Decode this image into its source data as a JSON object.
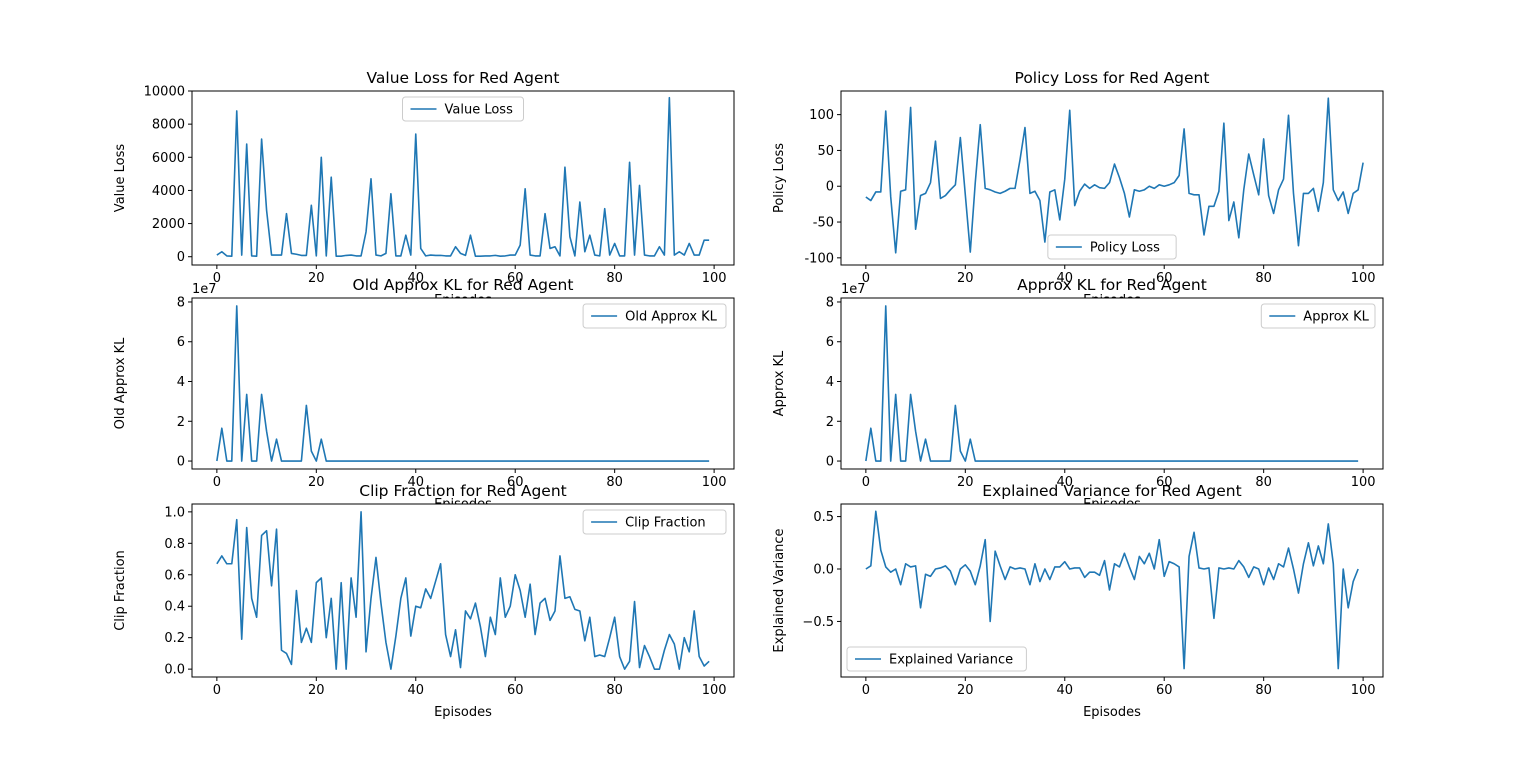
{
  "figure": {
    "background": "#ffffff",
    "line_color": "#1f77b4"
  },
  "chart_data": [
    {
      "type": "line",
      "title": "Value Loss for Red Agent",
      "xlabel": "Episodes",
      "ylabel": "Value Loss",
      "legend": "upper center",
      "xlim": [
        -5,
        104
      ],
      "ylim": [
        -500,
        10000
      ],
      "xticks": [
        0,
        20,
        40,
        60,
        80,
        100
      ],
      "yticks": [
        0,
        2000,
        4000,
        6000,
        8000,
        10000
      ],
      "exponent": "",
      "series": [
        {
          "name": "Value Loss",
          "values": [
            100,
            300,
            50,
            30,
            8800,
            100,
            6800,
            50,
            30,
            7100,
            2800,
            100,
            100,
            100,
            2600,
            200,
            150,
            80,
            80,
            3100,
            50,
            6000,
            50,
            4800,
            30,
            30,
            80,
            100,
            50,
            50,
            1500,
            4700,
            100,
            50,
            200,
            3800,
            50,
            50,
            1300,
            100,
            7400,
            500,
            50,
            100,
            80,
            80,
            50,
            50,
            600,
            200,
            80,
            1300,
            30,
            30,
            50,
            50,
            80,
            30,
            50,
            100,
            100,
            700,
            4100,
            100,
            50,
            50,
            2600,
            500,
            600,
            50,
            5400,
            1200,
            50,
            3300,
            300,
            1300,
            100,
            50,
            2900,
            100,
            800,
            50,
            50,
            5700,
            100,
            4300,
            100,
            50,
            50,
            600,
            100,
            9600,
            100,
            300,
            100,
            800,
            100,
            100,
            1000,
            1000
          ]
        }
      ]
    },
    {
      "type": "line",
      "title": "Policy Loss for Red Agent",
      "xlabel": "Episodes",
      "ylabel": "Policy Loss",
      "legend": "lower center",
      "xlim": [
        -5,
        104
      ],
      "ylim": [
        -110,
        133
      ],
      "xticks": [
        0,
        20,
        40,
        60,
        80,
        100
      ],
      "yticks": [
        -100,
        -50,
        0,
        50,
        100
      ],
      "exponent": "",
      "series": [
        {
          "name": "Policy Loss",
          "values": [
            -15,
            -20,
            -8,
            -8,
            105,
            -15,
            -93,
            -7,
            -5,
            110,
            -60,
            -13,
            -10,
            5,
            63,
            -17,
            -13,
            -5,
            2,
            68,
            -12,
            -92,
            5,
            86,
            -3,
            -5,
            -8,
            -10,
            -7,
            -3,
            -3,
            37,
            82,
            -10,
            -7,
            -20,
            -78,
            -8,
            -5,
            -47,
            10,
            106,
            -27,
            -7,
            3,
            -3,
            2,
            -2,
            -3,
            5,
            31,
            12,
            -10,
            -43,
            -5,
            -7,
            -5,
            0,
            -3,
            2,
            0,
            2,
            5,
            15,
            80,
            -10,
            -12,
            -12,
            -68,
            -28,
            -28,
            -7,
            88,
            -48,
            -22,
            -72,
            -5,
            45,
            16,
            -12,
            66,
            -13,
            -38,
            -5,
            10,
            99,
            -10,
            -83,
            -10,
            -10,
            -3,
            -35,
            5,
            123,
            -5,
            -20,
            -8,
            -38,
            -10,
            -5,
            33
          ]
        }
      ]
    },
    {
      "type": "line",
      "title": "Old Approx KL for Red Agent",
      "xlabel": "Episodes",
      "ylabel": "Old Approx KL",
      "legend": "upper right",
      "xlim": [
        -5,
        104
      ],
      "ylim": [
        -0.4,
        8.2
      ],
      "xticks": [
        0,
        20,
        40,
        60,
        80,
        100
      ],
      "yticks": [
        0,
        2,
        4,
        6,
        8
      ],
      "exponent": "1e7",
      "series": [
        {
          "name": "Old Approx KL",
          "values": [
            0,
            1.65,
            0,
            0,
            7.8,
            0,
            3.35,
            0,
            0,
            3.35,
            1.5,
            0,
            1.1,
            0,
            0,
            0,
            0,
            0,
            2.8,
            0.5,
            0,
            1.1,
            0,
            0,
            0,
            0,
            0,
            0,
            0,
            0,
            0,
            0,
            0,
            0,
            0,
            0,
            0,
            0,
            0,
            0,
            0,
            0,
            0,
            0,
            0,
            0,
            0,
            0,
            0,
            0,
            0,
            0,
            0,
            0,
            0,
            0,
            0,
            0,
            0,
            0,
            0,
            0,
            0,
            0,
            0,
            0,
            0,
            0,
            0,
            0,
            0,
            0,
            0,
            0,
            0,
            0,
            0,
            0,
            0,
            0,
            0,
            0,
            0,
            0,
            0,
            0,
            0,
            0,
            0,
            0,
            0,
            0,
            0,
            0,
            0,
            0,
            0,
            0,
            0,
            0
          ]
        }
      ]
    },
    {
      "type": "line",
      "title": "Approx KL for Red Agent",
      "xlabel": "Episodes",
      "ylabel": "Approx KL",
      "legend": "upper right",
      "xlim": [
        -5,
        104
      ],
      "ylim": [
        -0.4,
        8.2
      ],
      "xticks": [
        0,
        20,
        40,
        60,
        80,
        100
      ],
      "yticks": [
        0,
        2,
        4,
        6,
        8
      ],
      "exponent": "1e7",
      "series": [
        {
          "name": "Approx KL",
          "values": [
            0,
            1.65,
            0,
            0,
            7.8,
            0,
            3.35,
            0,
            0,
            3.35,
            1.5,
            0,
            1.1,
            0,
            0,
            0,
            0,
            0,
            2.8,
            0.5,
            0,
            1.1,
            0,
            0,
            0,
            0,
            0,
            0,
            0,
            0,
            0,
            0,
            0,
            0,
            0,
            0,
            0,
            0,
            0,
            0,
            0,
            0,
            0,
            0,
            0,
            0,
            0,
            0,
            0,
            0,
            0,
            0,
            0,
            0,
            0,
            0,
            0,
            0,
            0,
            0,
            0,
            0,
            0,
            0,
            0,
            0,
            0,
            0,
            0,
            0,
            0,
            0,
            0,
            0,
            0,
            0,
            0,
            0,
            0,
            0,
            0,
            0,
            0,
            0,
            0,
            0,
            0,
            0,
            0,
            0,
            0,
            0,
            0,
            0,
            0,
            0,
            0,
            0,
            0,
            0
          ]
        }
      ]
    },
    {
      "type": "line",
      "title": "Clip Fraction for Red Agent",
      "xlabel": "Episodes",
      "ylabel": "Clip Fraction",
      "legend": "upper right",
      "xlim": [
        -5,
        104
      ],
      "ylim": [
        -0.05,
        1.05
      ],
      "xticks": [
        0,
        20,
        40,
        60,
        80,
        100
      ],
      "yticks": [
        0.0,
        0.2,
        0.4,
        0.6,
        0.8,
        1.0
      ],
      "ytick_labels": [
        "0.0",
        "0.2",
        "0.4",
        "0.6",
        "0.8",
        "1.0"
      ],
      "exponent": "",
      "series": [
        {
          "name": "Clip Fraction",
          "values": [
            0.67,
            0.72,
            0.67,
            0.67,
            0.95,
            0.19,
            0.9,
            0.45,
            0.33,
            0.85,
            0.88,
            0.53,
            0.89,
            0.12,
            0.1,
            0.03,
            0.5,
            0.17,
            0.26,
            0.17,
            0.55,
            0.58,
            0.2,
            0.45,
            0,
            0.55,
            0,
            0.58,
            0.33,
            1.0,
            0.11,
            0.45,
            0.71,
            0.42,
            0.17,
            0,
            0.21,
            0.45,
            0.58,
            0.21,
            0.4,
            0.39,
            0.51,
            0.45,
            0.56,
            0.67,
            0.22,
            0.08,
            0.25,
            0.01,
            0.37,
            0.32,
            0.42,
            0.27,
            0.08,
            0.33,
            0.22,
            0.58,
            0.33,
            0.4,
            0.6,
            0.5,
            0.33,
            0.54,
            0.22,
            0.42,
            0.45,
            0.31,
            0.37,
            0.72,
            0.45,
            0.46,
            0.38,
            0.37,
            0.18,
            0.33,
            0.08,
            0.09,
            0.08,
            0.2,
            0.33,
            0.08,
            0,
            0.05,
            0.43,
            0.01,
            0.15,
            0.08,
            0,
            0,
            0.12,
            0.22,
            0.16,
            0,
            0.2,
            0.11,
            0.37,
            0.08,
            0.02,
            0.05
          ]
        }
      ]
    },
    {
      "type": "line",
      "title": "Explained Variance for Red Agent",
      "xlabel": "Episodes",
      "ylabel": "Explained Variance",
      "legend": "lower left",
      "xlim": [
        -5,
        104
      ],
      "ylim": [
        -1.03,
        0.62
      ],
      "xticks": [
        0,
        20,
        40,
        60,
        80,
        100
      ],
      "yticks": [
        -0.5,
        0.0,
        0.5
      ],
      "ytick_labels": [
        "−0.5",
        "0.0",
        "0.5"
      ],
      "exponent": "",
      "series": [
        {
          "name": "Explained Variance",
          "values": [
            0,
            0.03,
            0.55,
            0.18,
            0.02,
            -0.03,
            0,
            -0.15,
            0.05,
            0.02,
            0.03,
            -0.37,
            -0.05,
            -0.07,
            0,
            0.01,
            0.03,
            -0.02,
            -0.15,
            0,
            0.04,
            -0.02,
            -0.15,
            0.03,
            0.28,
            -0.5,
            0.17,
            0.03,
            -0.1,
            0.02,
            0,
            0.01,
            0,
            -0.15,
            0.05,
            -0.12,
            0,
            -0.1,
            0.02,
            0.02,
            0.07,
            0,
            0.01,
            0.01,
            -0.08,
            -0.03,
            -0.03,
            -0.06,
            0.08,
            -0.2,
            0.05,
            0.02,
            0.15,
            0.02,
            -0.1,
            0.12,
            0.05,
            0.15,
            0,
            0.28,
            -0.07,
            0.07,
            0.05,
            0.02,
            -0.95,
            0.12,
            0.35,
            0.01,
            0,
            0.01,
            -0.47,
            0.01,
            0,
            0.01,
            0,
            0.08,
            0.02,
            -0.08,
            0.02,
            0,
            -0.15,
            0.01,
            -0.1,
            0.05,
            0.02,
            0.2,
            0,
            -0.23,
            0.05,
            0.25,
            0.03,
            0.22,
            0.05,
            0.43,
            0.05,
            -0.95,
            0,
            -0.37,
            -0.12,
            0
          ]
        }
      ]
    }
  ]
}
